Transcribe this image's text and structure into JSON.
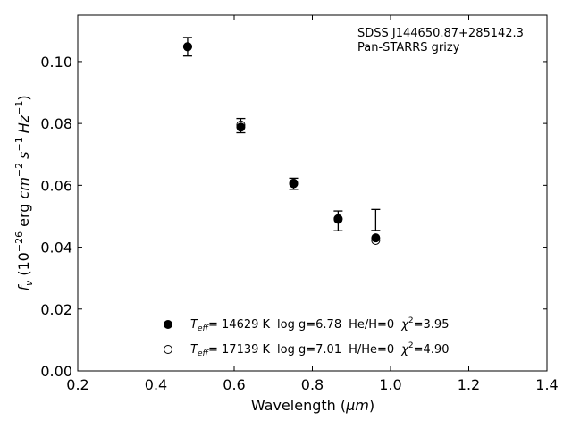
{
  "chart_data": {
    "type": "scatter",
    "annotation": {
      "line1": "SDSS J144650.87+285142.3",
      "line2": "Pan-STARRS grizy"
    },
    "xlabel": {
      "prefix": "Wavelength (",
      "unit": "μm",
      "suffix": ")"
    },
    "ylabel": {
      "f": "f",
      "nu": "ν",
      "open": " (10",
      "exp": "−26",
      "mid": " erg ",
      "cm": "cm",
      "cm_exp": "−2",
      "s": "s",
      "s_exp": "−1",
      "hz": "Hz",
      "hz_exp": "−1",
      "close": ")"
    },
    "xlim": [
      0.2,
      1.4
    ],
    "ylim": [
      0.0,
      0.115
    ],
    "xticks": [
      "0.2",
      "0.4",
      "0.6",
      "0.8",
      "1.0",
      "1.2",
      "1.4"
    ],
    "yticks": [
      "0.00",
      "0.02",
      "0.04",
      "0.06",
      "0.08",
      "0.10"
    ],
    "observed": {
      "x": [
        0.481,
        0.617,
        0.752,
        0.866,
        0.962
      ],
      "y": [
        0.1048,
        0.0793,
        0.0605,
        0.0485,
        0.0488
      ],
      "err": [
        0.003,
        0.0023,
        0.0018,
        0.0032,
        0.0034
      ]
    },
    "series": [
      {
        "marker": "filled",
        "x": [
          0.481,
          0.617,
          0.752,
          0.866,
          0.962
        ],
        "y": [
          0.1048,
          0.0788,
          0.0605,
          0.049,
          0.043
        ],
        "label": {
          "t": "T",
          "eff": "eff",
          "teff": "= 14629 K",
          "logg": "log g=6.78",
          "comp": "He/H=0",
          "chi": "χ",
          "chi_exp": "2",
          "chi_val": "=3.95"
        }
      },
      {
        "marker": "open",
        "x": [
          0.481,
          0.617,
          0.752,
          0.866,
          0.962
        ],
        "y": [
          0.1048,
          0.0795,
          0.0607,
          0.0492,
          0.0422
        ],
        "label": {
          "t": "T",
          "eff": "eff",
          "teff": "= 17139 K",
          "logg": "log g=7.01",
          "comp": "H/He=0",
          "chi": "χ",
          "chi_exp": "2",
          "chi_val": "=4.90"
        }
      }
    ]
  }
}
